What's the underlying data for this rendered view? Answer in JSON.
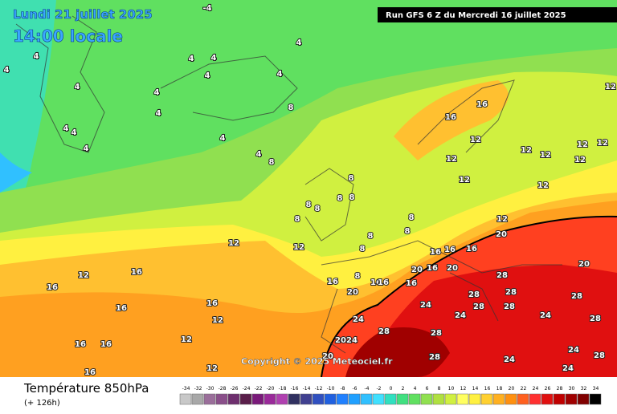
{
  "header": {
    "date": "Lundi 21 juillet 2025",
    "time": "14:00 locale",
    "run": "Run GFS 6 Z du Mercredi 16 juillet 2025"
  },
  "footer": {
    "title": "Température 850hPa",
    "lead": "(+ 126h)",
    "copyright": "Copyright © 2025 Meteociel.fr"
  },
  "legend": {
    "values": [
      -34,
      -32,
      -30,
      -28,
      -26,
      -24,
      -22,
      -20,
      -18,
      -16,
      -14,
      -12,
      -10,
      -8,
      -6,
      -4,
      -2,
      0,
      2,
      4,
      6,
      8,
      10,
      12,
      14,
      16,
      18,
      20,
      22,
      24,
      26,
      28,
      30,
      32,
      34
    ],
    "colors": [
      "#c8c8c8",
      "#a8a8a8",
      "#9a6e9a",
      "#8a4f8a",
      "#6e2f6e",
      "#5a1e4a",
      "#7a1a7a",
      "#9a2a9a",
      "#b040b0",
      "#303060",
      "#404090",
      "#3050c0",
      "#2060e0",
      "#2080ff",
      "#20a0ff",
      "#30c0ff",
      "#40e0ff",
      "#30e0c0",
      "#40e080",
      "#60e060",
      "#90e050",
      "#b0e040",
      "#d0f040",
      "#ffff60",
      "#fff040",
      "#ffd030",
      "#ffb020",
      "#ff9010",
      "#ff6020",
      "#ff3030",
      "#e01010",
      "#c00000",
      "#a00000",
      "#800000",
      "#000000"
    ]
  },
  "map": {
    "labels": [
      -4,
      4,
      4,
      4,
      4,
      4,
      4,
      4,
      4,
      4,
      4,
      8,
      4,
      4,
      4,
      4,
      4,
      8,
      16,
      16,
      12,
      12,
      12,
      12,
      12,
      12,
      12,
      12,
      12,
      12,
      8,
      8,
      8,
      8,
      8,
      8,
      8,
      8,
      8,
      8,
      12,
      20,
      16,
      16,
      16,
      20,
      16,
      20,
      20,
      28,
      12,
      12,
      12,
      16,
      16,
      16,
      16,
      12,
      16,
      8,
      16,
      16,
      16,
      20,
      24,
      28,
      28,
      28,
      28,
      28,
      24,
      24,
      24,
      28,
      28,
      28,
      12,
      16,
      16,
      20,
      24,
      28,
      24,
      24,
      28,
      20,
      12,
      16,
      24
    ]
  }
}
